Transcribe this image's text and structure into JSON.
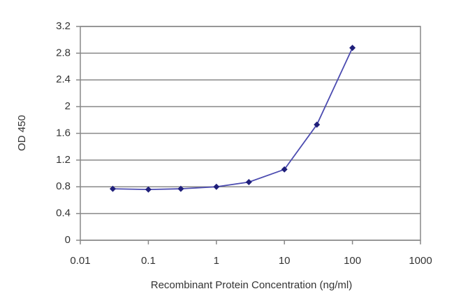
{
  "chart_data": {
    "type": "line",
    "x_label": "Recombinant Protein Concentration (ng/ml)",
    "y_label": "OD 450",
    "x": [
      0.03,
      0.1,
      0.3,
      1,
      3,
      10,
      30,
      100
    ],
    "values": [
      0.77,
      0.76,
      0.77,
      0.8,
      0.87,
      1.06,
      1.73,
      2.88
    ],
    "color": "#4b4bb0",
    "marker_color": "#1f1f7a",
    "x_log": true,
    "xlim": [
      0.01,
      1000
    ],
    "xticks": [
      0.01,
      0.1,
      1,
      10,
      100,
      1000
    ],
    "ylim": [
      0,
      3.2
    ],
    "yticks": [
      0,
      0.4,
      0.8,
      1.2,
      1.6,
      2,
      2.4,
      2.8,
      3.2
    ],
    "grid": true
  }
}
